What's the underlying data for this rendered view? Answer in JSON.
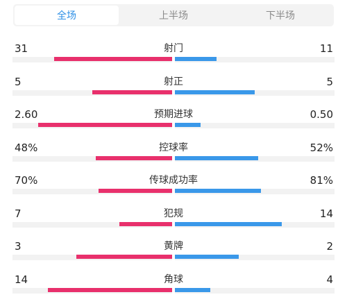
{
  "tabs": [
    {
      "label": "全场",
      "active": true
    },
    {
      "label": "上半场",
      "active": false
    },
    {
      "label": "下半场",
      "active": false
    }
  ],
  "colors": {
    "home": "#e8306c",
    "away": "#3a98e9",
    "accent": "#2d8fe6"
  },
  "stats": [
    {
      "label": "射门",
      "home": "31",
      "away": "11",
      "home_share": 0.74,
      "away_share": 0.26
    },
    {
      "label": "射正",
      "home": "5",
      "away": "5",
      "home_share": 0.5,
      "away_share": 0.5
    },
    {
      "label": "预期进球",
      "home": "2.60",
      "away": "0.50",
      "home_share": 0.84,
      "away_share": 0.16
    },
    {
      "label": "控球率",
      "home": "48%",
      "away": "52%",
      "home_share": 0.48,
      "away_share": 0.52
    },
    {
      "label": "传球成功率",
      "home": "70%",
      "away": "81%",
      "home_share": 0.46,
      "away_share": 0.54
    },
    {
      "label": "犯规",
      "home": "7",
      "away": "14",
      "home_share": 0.33,
      "away_share": 0.67
    },
    {
      "label": "黄牌",
      "home": "3",
      "away": "2",
      "home_share": 0.6,
      "away_share": 0.4
    },
    {
      "label": "角球",
      "home": "14",
      "away": "4",
      "home_share": 0.78,
      "away_share": 0.22
    }
  ]
}
